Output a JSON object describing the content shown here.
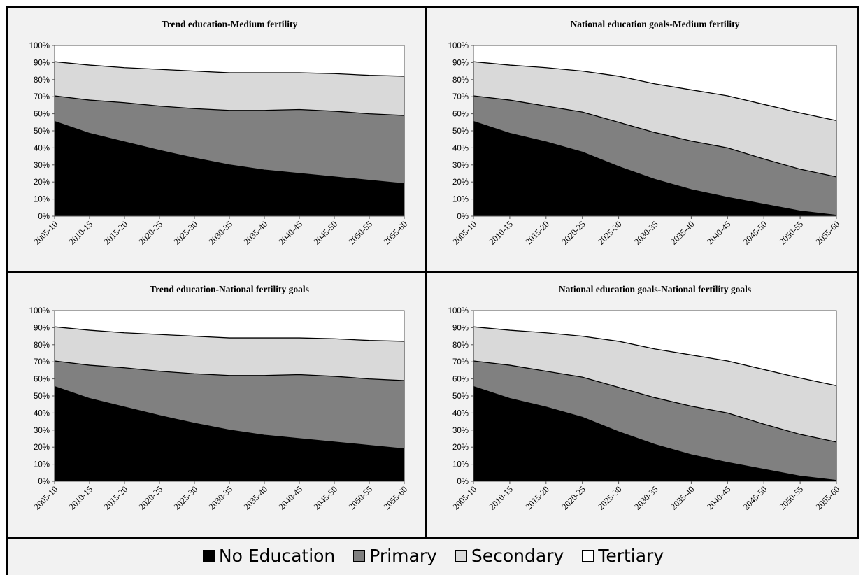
{
  "colors": {
    "no_education": "#000000",
    "primary": "#808080",
    "secondary": "#d9d9d9",
    "tertiary": "#ffffff"
  },
  "legend": {
    "no_education": "No Education",
    "primary": "Primary",
    "secondary": "Secondary",
    "tertiary": "Tertiary"
  },
  "chart_data": [
    {
      "type": "area",
      "stacked": true,
      "title": "Trend education-Medium fertility",
      "categories": [
        "2005-10",
        "2010-15",
        "2015-20",
        "2020-25",
        "2025-30",
        "2030-35",
        "2035-40",
        "2040-45",
        "2045-50",
        "2050-55",
        "2055-60"
      ],
      "y_ticks": [
        "0%",
        "10%",
        "20%",
        "30%",
        "40%",
        "50%",
        "60%",
        "70%",
        "80%",
        "90%",
        "100%"
      ],
      "ylim": [
        0,
        100
      ],
      "series": [
        {
          "name": "No Education",
          "values": [
            55.5,
            48.5,
            43.5,
            38.5,
            34,
            30,
            27,
            25,
            23,
            21,
            19
          ]
        },
        {
          "name": "Primary",
          "values": [
            15,
            19.5,
            23,
            26,
            29,
            32,
            35,
            37.5,
            38.5,
            39,
            40
          ]
        },
        {
          "name": "Secondary",
          "values": [
            20,
            20.5,
            20.5,
            21.5,
            22,
            22,
            22,
            21.5,
            22,
            22.5,
            23
          ]
        },
        {
          "name": "Tertiary",
          "values": [
            9.5,
            11.5,
            13,
            14,
            15,
            16,
            16,
            16,
            16.5,
            17.5,
            18
          ]
        }
      ]
    },
    {
      "type": "area",
      "stacked": true,
      "title": "National education goals-Medium fertility",
      "categories": [
        "2005-10",
        "2010-15",
        "2015-20",
        "2020-25",
        "2025-30",
        "2030-35",
        "2035-40",
        "2040-45",
        "2045-50",
        "2050-55",
        "2055-60"
      ],
      "y_ticks": [
        "0%",
        "10%",
        "20%",
        "30%",
        "40%",
        "50%",
        "60%",
        "70%",
        "80%",
        "90%",
        "100%"
      ],
      "ylim": [
        0,
        100
      ],
      "series": [
        {
          "name": "No Education",
          "values": [
            55.5,
            48.5,
            43.5,
            37.5,
            29,
            21.5,
            15.5,
            11,
            7,
            3,
            0.5
          ]
        },
        {
          "name": "Primary",
          "values": [
            15,
            19.5,
            21,
            23.5,
            26,
            27.5,
            28.5,
            29,
            26.5,
            24.5,
            22.5
          ]
        },
        {
          "name": "Secondary",
          "values": [
            20,
            20.5,
            22.5,
            24,
            27,
            28.5,
            30,
            30.5,
            32,
            33,
            33
          ]
        },
        {
          "name": "Tertiary",
          "values": [
            9.5,
            11.5,
            13,
            15,
            18,
            22.5,
            26,
            29.5,
            34.5,
            39.5,
            44
          ]
        }
      ]
    },
    {
      "type": "area",
      "stacked": true,
      "title": "Trend education-National fertility goals",
      "categories": [
        "2005-10",
        "2010-15",
        "2015-20",
        "2020-25",
        "2025-30",
        "2030-35",
        "2035-40",
        "2040-45",
        "2045-50",
        "2050-55",
        "2055-60"
      ],
      "y_ticks": [
        "0%",
        "10%",
        "20%",
        "30%",
        "40%",
        "50%",
        "60%",
        "70%",
        "80%",
        "90%",
        "100%"
      ],
      "ylim": [
        0,
        100
      ],
      "series": [
        {
          "name": "No Education",
          "values": [
            55.5,
            48.5,
            43.5,
            38.5,
            34,
            30,
            27,
            25,
            23,
            21,
            19
          ]
        },
        {
          "name": "Primary",
          "values": [
            15,
            19.5,
            23,
            26,
            29,
            32,
            35,
            37.5,
            38.5,
            39,
            40
          ]
        },
        {
          "name": "Secondary",
          "values": [
            20,
            20.5,
            20.5,
            21.5,
            22,
            22,
            22,
            21.5,
            22,
            22.5,
            23
          ]
        },
        {
          "name": "Tertiary",
          "values": [
            9.5,
            11.5,
            13,
            14,
            15,
            16,
            16,
            16,
            16.5,
            17.5,
            18
          ]
        }
      ]
    },
    {
      "type": "area",
      "stacked": true,
      "title": "National education goals-National fertility goals",
      "categories": [
        "2005-10",
        "2010-15",
        "2015-20",
        "2020-25",
        "2025-30",
        "2030-35",
        "2035-40",
        "2040-45",
        "2045-50",
        "2050-55",
        "2055-60"
      ],
      "y_ticks": [
        "0%",
        "10%",
        "20%",
        "30%",
        "40%",
        "50%",
        "60%",
        "70%",
        "80%",
        "90%",
        "100%"
      ],
      "ylim": [
        0,
        100
      ],
      "series": [
        {
          "name": "No Education",
          "values": [
            55.5,
            48.5,
            43.5,
            37.5,
            29,
            21.5,
            15.5,
            11,
            7,
            3,
            0.5
          ]
        },
        {
          "name": "Primary",
          "values": [
            15,
            19.5,
            21,
            23.5,
            26,
            27.5,
            28.5,
            29,
            26.5,
            24.5,
            22.5
          ]
        },
        {
          "name": "Secondary",
          "values": [
            20,
            20.5,
            22.5,
            24,
            27,
            28.5,
            30,
            30.5,
            32,
            33,
            33
          ]
        },
        {
          "name": "Tertiary",
          "values": [
            9.5,
            11.5,
            13,
            15,
            18,
            22.5,
            26,
            29.5,
            34.5,
            39.5,
            44
          ]
        }
      ]
    }
  ]
}
